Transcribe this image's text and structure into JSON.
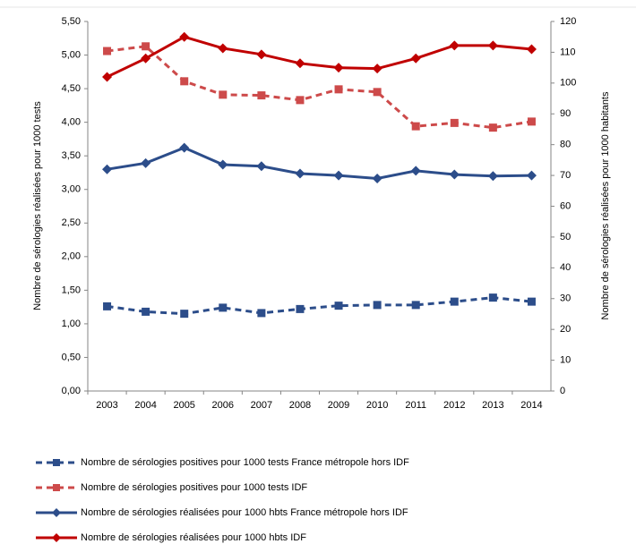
{
  "chart_data": {
    "type": "line",
    "y_label": "Nombre de sérologies réalisées pour 1000 tests",
    "y2_label": "Nombre de sérologies réalisées pour 1000 habitants",
    "categories": [
      "2003",
      "2004",
      "2005",
      "2006",
      "2007",
      "2008",
      "2009",
      "2010",
      "2011",
      "2012",
      "2013",
      "2014"
    ],
    "ylim": [
      0,
      5.5
    ],
    "yticks": [
      {
        "value": 0,
        "label": "0,00"
      },
      {
        "value": 0.5,
        "label": "0,50"
      },
      {
        "value": 1,
        "label": "1,00"
      },
      {
        "value": 1.5,
        "label": "1,50"
      },
      {
        "value": 2,
        "label": "2,00"
      },
      {
        "value": 2.5,
        "label": "2,50"
      },
      {
        "value": 3,
        "label": "3,00"
      },
      {
        "value": 3.5,
        "label": "3,50"
      },
      {
        "value": 4,
        "label": "4,00"
      },
      {
        "value": 4.5,
        "label": "4,50"
      },
      {
        "value": 5,
        "label": "5,00"
      },
      {
        "value": 5.5,
        "label": "5,50"
      }
    ],
    "y2lim": [
      0,
      120
    ],
    "y2ticks": [
      0,
      10,
      20,
      30,
      40,
      50,
      60,
      70,
      80,
      90,
      100,
      110,
      120
    ],
    "grid": false,
    "series": [
      {
        "name": "Nombre de sérologies positives pour 1000 tests France métropole hors IDF",
        "color": "#2c4d8a",
        "dashed": true,
        "marker": "square",
        "values": [
          1.26,
          1.18,
          1.15,
          1.24,
          1.16,
          1.22,
          1.27,
          1.28,
          1.28,
          1.33,
          1.39,
          1.33
        ]
      },
      {
        "name": "Nombre de sérologies  positives pour 1000 tests IDF",
        "color": "#cd4a4a",
        "dashed": true,
        "marker": "square",
        "values": [
          5.06,
          5.13,
          4.61,
          4.41,
          4.4,
          4.33,
          4.49,
          4.45,
          3.94,
          3.99,
          3.92,
          4.01
        ]
      },
      {
        "name": "Nombre de sérologies réalisées pour 1000 hbts France métropole hors IDF",
        "color": "#2c4d8a",
        "dashed": false,
        "marker": "diamond",
        "axis": "y2",
        "values": [
          72,
          74,
          79,
          73.5,
          73,
          70.6,
          70,
          69,
          71.5,
          70.3,
          69.8,
          70
        ]
      },
      {
        "name": "Nombre de sérologies réalisées pour 1000 hbts IDF",
        "color": "#c00000",
        "dashed": false,
        "marker": "diamond",
        "axis": "y2",
        "values": [
          102,
          108,
          115,
          111.3,
          109.3,
          106.4,
          105,
          104.7,
          108,
          112.2,
          112.2,
          111
        ]
      }
    ]
  }
}
